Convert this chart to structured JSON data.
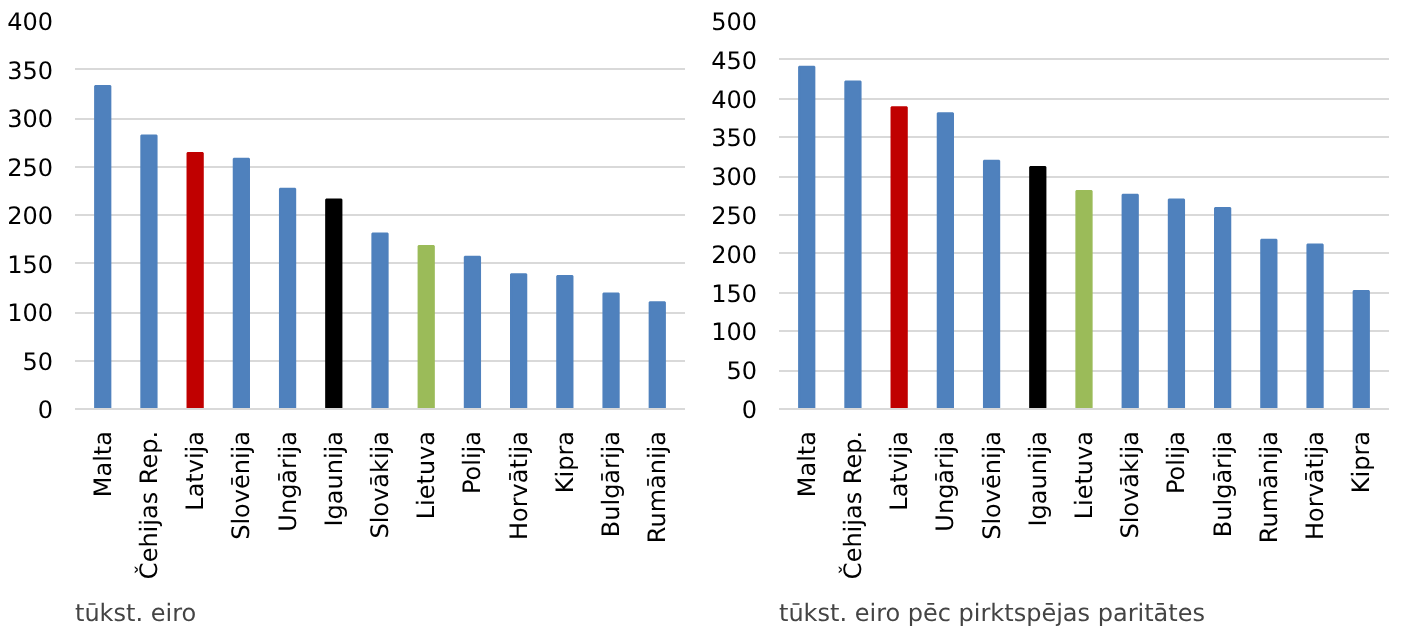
{
  "chart_data": [
    {
      "type": "bar",
      "categories": [
        "Malta",
        "Čehijas Rep.",
        "Latvija",
        "Slovēnija",
        "Ungārija",
        "Igaunija",
        "Slovākija",
        "Lietuva",
        "Polija",
        "Horvātija",
        "Kipra",
        "Bulgārija",
        "Rumānija"
      ],
      "values": [
        333,
        282,
        264,
        258,
        227,
        216,
        181,
        168,
        157,
        139,
        137,
        119,
        110
      ],
      "colors": [
        "#4f81bd",
        "#4f81bd",
        "#c00000",
        "#4f81bd",
        "#4f81bd",
        "#000000",
        "#4f81bd",
        "#9bbb59",
        "#4f81bd",
        "#4f81bd",
        "#4f81bd",
        "#4f81bd",
        "#4f81bd"
      ],
      "ylim": [
        0,
        400
      ],
      "yticks": [
        0,
        50,
        100,
        150,
        200,
        250,
        300,
        350,
        400
      ],
      "grid": "y",
      "annotations": [
        "tūkst. eiro"
      ]
    },
    {
      "type": "bar",
      "categories": [
        "Malta",
        "Čehijas Rep.",
        "Latvija",
        "Ungārija",
        "Slovēnija",
        "Igaunija",
        "Lietuva",
        "Slovākija",
        "Polija",
        "Bulgārija",
        "Rumānija",
        "Horvātija",
        "Kipra"
      ],
      "values": [
        441,
        422,
        389,
        381,
        320,
        312,
        281,
        276,
        270,
        259,
        218,
        212,
        152
      ],
      "colors": [
        "#4f81bd",
        "#4f81bd",
        "#c00000",
        "#4f81bd",
        "#4f81bd",
        "#000000",
        "#9bbb59",
        "#4f81bd",
        "#4f81bd",
        "#4f81bd",
        "#4f81bd",
        "#4f81bd",
        "#4f81bd"
      ],
      "ylim": [
        0,
        500
      ],
      "yticks": [
        0,
        50,
        100,
        150,
        200,
        250,
        300,
        350,
        400,
        450,
        500
      ],
      "grid": "y",
      "annotations": [
        "tūkst. eiro pēc pirktspējas paritātes"
      ]
    }
  ]
}
